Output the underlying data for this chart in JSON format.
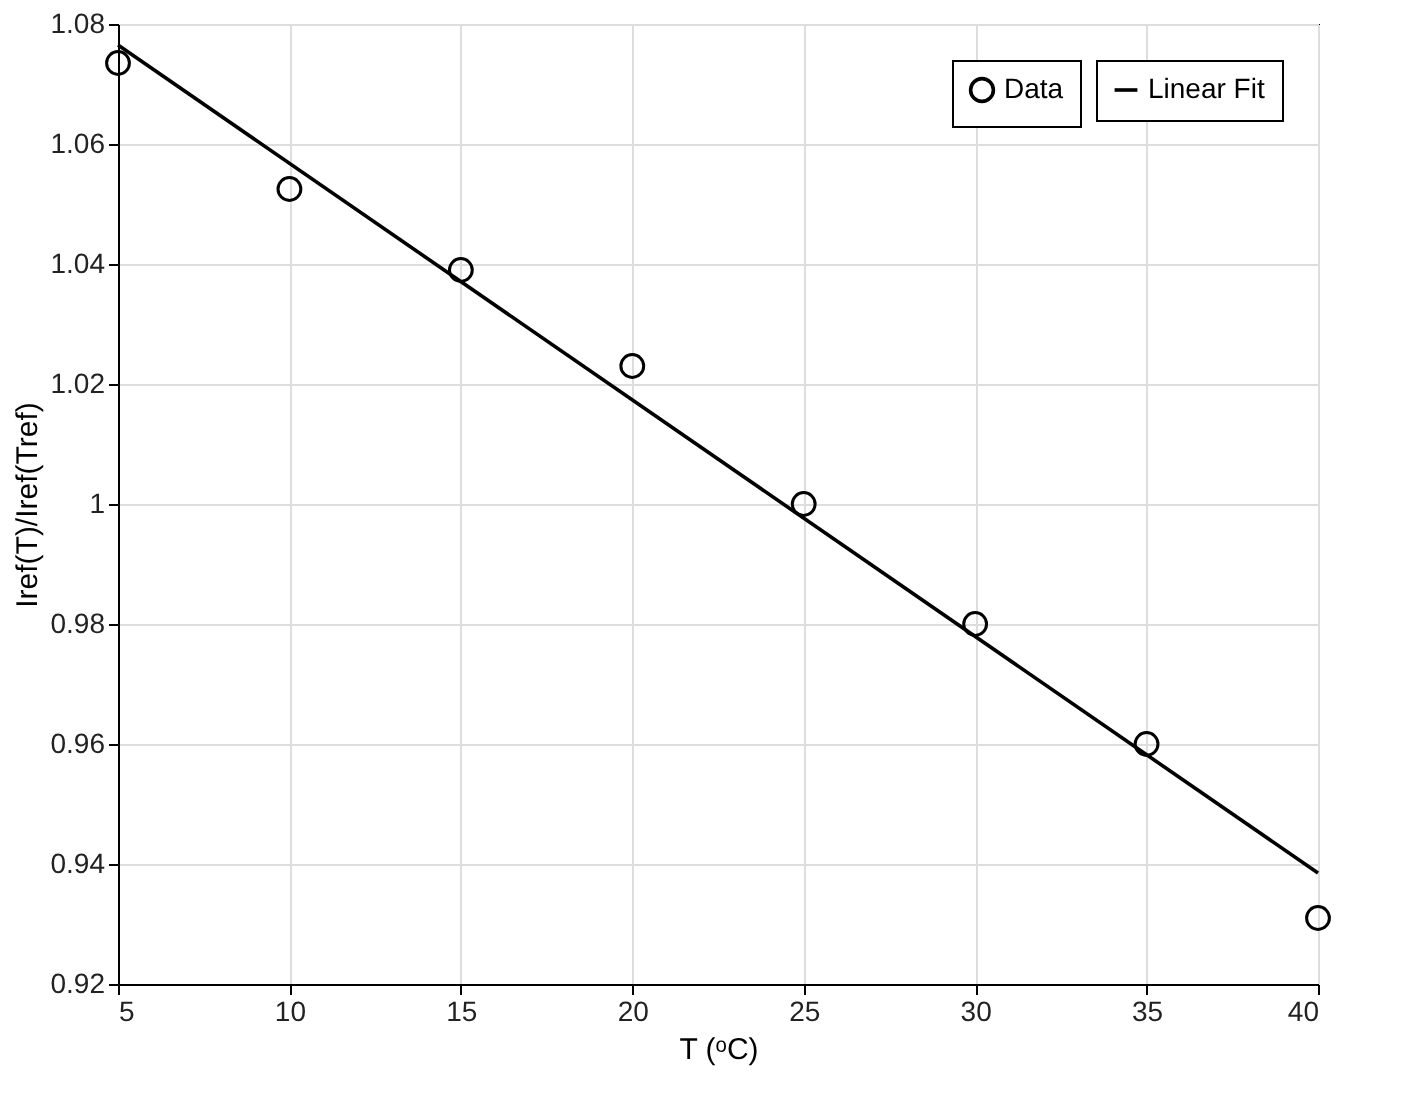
{
  "chart_data": {
    "type": "scatter",
    "xlabel": "T (ᵒC)",
    "ylabel": "Iref(T)/Iref(Tref)",
    "x": [
      5,
      10,
      15,
      20,
      25,
      30,
      35,
      40
    ],
    "series": [
      {
        "name": "Data",
        "color": "#000000",
        "marker": "circle",
        "values": [
          1.0735,
          1.0525,
          1.039,
          1.023,
          1.0,
          0.98,
          0.96,
          0.931
        ]
      },
      {
        "name": "Linear Fit",
        "type": "line",
        "color": "#000000",
        "marker": "none",
        "line_style": "solid",
        "x": [
          5,
          40
        ],
        "values": [
          1.0765,
          0.9385
        ]
      }
    ],
    "xlim": [
      5,
      40
    ],
    "xticks": [
      5,
      10,
      15,
      20,
      25,
      30,
      35,
      40
    ],
    "ylim": [
      0.92,
      1.08
    ],
    "yticks": [
      0.92,
      0.94,
      0.96,
      0.98,
      {
        "value": 1,
        "label": "1"
      },
      1.02,
      1.04,
      1.06,
      1.08
    ],
    "grid": true,
    "legend": "top right"
  }
}
